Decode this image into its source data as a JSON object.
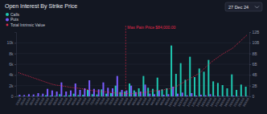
{
  "chart_data": {
    "type": "bar",
    "title": "Open Interest By Strike Price",
    "selector": "27 Dec 24",
    "categories": [
      "20000",
      "25000",
      "30000",
      "35000",
      "40000",
      "45000",
      "50000",
      "55000",
      "58000",
      "60000",
      "62000",
      "64000",
      "65000",
      "66000",
      "68000",
      "70000",
      "72000",
      "74000",
      "75000",
      "76000",
      "78000",
      "80000",
      "82000",
      "84000",
      "85000",
      "86000",
      "88000",
      "90000",
      "92000",
      "94000",
      "95000",
      "96000",
      "98000",
      "100000",
      "105000",
      "110000",
      "115000",
      "120000",
      "125000",
      "130000",
      "140000",
      "150000",
      "160000",
      "170000",
      "180000",
      "190000",
      "200000",
      "220000",
      "250000",
      "300000"
    ],
    "series": [
      {
        "name": "Calls",
        "type": "bar",
        "color": "#1fc7b0",
        "values": [
          50,
          30,
          40,
          30,
          60,
          50,
          200,
          150,
          100,
          400,
          150,
          200,
          500,
          250,
          300,
          1200,
          400,
          350,
          1300,
          500,
          600,
          2000,
          800,
          900,
          2400,
          1100,
          1500,
          3800,
          1600,
          1400,
          3500,
          1300,
          1500,
          9500,
          4200,
          6200,
          3100,
          7400,
          3600,
          5200,
          4600,
          6800,
          2800,
          2500,
          2100,
          1500,
          4100,
          1200,
          2200,
          1800
        ]
      },
      {
        "name": "Puts",
        "type": "bar",
        "color": "#7b5cff",
        "values": [
          300,
          250,
          400,
          350,
          600,
          500,
          1400,
          1100,
          900,
          2600,
          900,
          1100,
          2400,
          1200,
          1500,
          3000,
          1400,
          1300,
          2600,
          1600,
          1500,
          3800,
          1200,
          1100,
          2000,
          800,
          900,
          2200,
          500,
          400,
          1100,
          300,
          400,
          1800,
          500,
          700,
          200,
          600,
          150,
          300,
          200,
          400,
          100,
          80,
          60,
          50,
          150,
          40,
          60,
          50
        ]
      },
      {
        "name": "Total Intrinsic Value",
        "type": "line",
        "axis": "y2",
        "color": "#e0294a",
        "line_style": "dotted",
        "values": [
          4400000000,
          4100000000,
          3800000000,
          3500000000,
          3200000000,
          2900000000,
          2600000000,
          2300000000,
          2100000000,
          2000000000,
          1850000000,
          1700000000,
          1600000000,
          1500000000,
          1350000000,
          1200000000,
          1050000000,
          950000000,
          900000000,
          800000000,
          700000000,
          600000000,
          550000000,
          500000000,
          520000000,
          550000000,
          620000000,
          720000000,
          850000000,
          1000000000,
          1100000000,
          1200000000,
          1350000000,
          1500000000,
          1900000000,
          2400000000,
          2900000000,
          3400000000,
          3900000000,
          4400000000,
          5300000000,
          6100000000,
          6800000000,
          7400000000,
          8000000000,
          8500000000,
          9000000000,
          9800000000,
          10600000000,
          11400000000
        ]
      }
    ],
    "ylim": [
      0,
      12000
    ],
    "yticks": [
      0,
      {
        "value": 2000,
        "label": "2k"
      },
      {
        "value": 4000,
        "label": "4k"
      },
      {
        "value": 6000,
        "label": "6k"
      },
      {
        "value": 8000,
        "label": "8k"
      },
      {
        "value": 10000,
        "label": "10k"
      }
    ],
    "y2lim": [
      0,
      12000000000
    ],
    "y2ticks": [
      0,
      {
        "value": 2000000000,
        "label": "2B"
      },
      {
        "value": 4000000000,
        "label": "4B"
      },
      {
        "value": 6000000000,
        "label": "6B"
      },
      {
        "value": 8000000000,
        "label": "8B"
      },
      {
        "value": 10000000000,
        "label": "10B"
      },
      {
        "value": 12000000000,
        "label": "12B"
      }
    ],
    "annotations": [
      {
        "x": "84000",
        "text": "Max Pain Price $84,000.00",
        "color": "#e0294a"
      }
    ],
    "grid": true,
    "legend": "upper left"
  }
}
